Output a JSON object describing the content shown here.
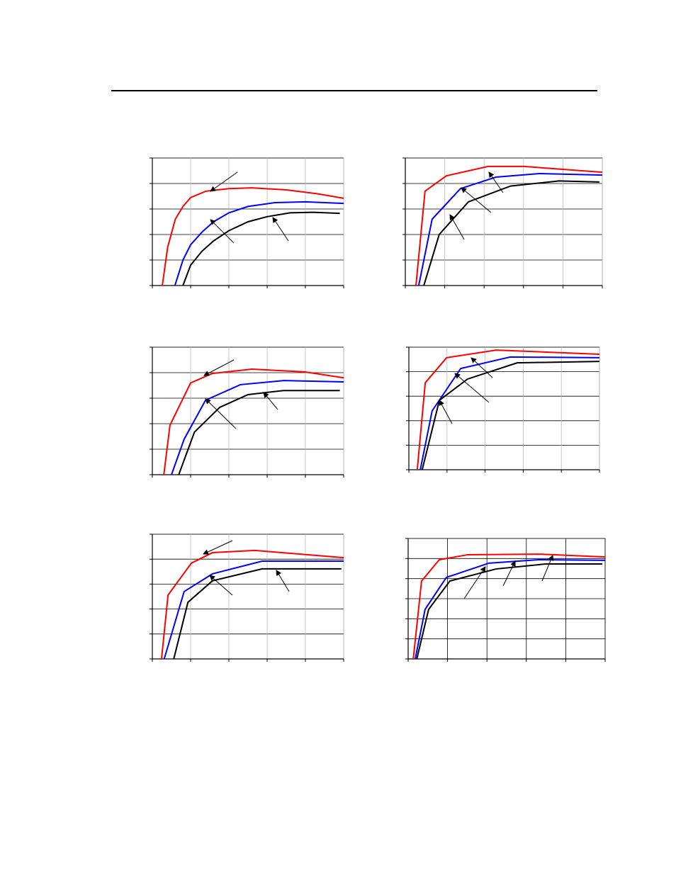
{
  "chart_data": [
    {
      "type": "line",
      "xlim": [
        0,
        5
      ],
      "ylim": [
        0,
        5
      ],
      "xticks": [
        0,
        1,
        2,
        3,
        4,
        5
      ],
      "yticks": [
        0,
        1,
        2,
        3,
        4,
        5
      ],
      "grid": true,
      "series": [
        {
          "color": "#ff0000",
          "x": [
            0.26,
            0.4,
            0.6,
            0.8,
            1.0,
            1.4,
            2.0,
            2.6,
            3.5,
            4.3,
            5
          ],
          "values": [
            0,
            1.5,
            2.6,
            3.1,
            3.45,
            3.7,
            3.8,
            3.83,
            3.75,
            3.6,
            3.42
          ]
        },
        {
          "color": "#0000ff",
          "x": [
            0.59,
            0.8,
            1.0,
            1.3,
            1.6,
            2.0,
            2.5,
            3.2,
            4.0,
            5
          ],
          "values": [
            0,
            1.0,
            1.6,
            2.1,
            2.5,
            2.85,
            3.1,
            3.25,
            3.28,
            3.22
          ]
        },
        {
          "color": "#000000",
          "x": [
            0.8,
            1.0,
            1.3,
            1.6,
            2.0,
            2.5,
            3.0,
            3.6,
            4.2,
            4.9
          ],
          "values": [
            0,
            0.8,
            1.35,
            1.75,
            2.15,
            2.5,
            2.7,
            2.85,
            2.87,
            2.83
          ]
        }
      ]
    },
    {
      "type": "line",
      "xlim": [
        0,
        5
      ],
      "ylim": [
        0,
        5
      ],
      "xticks": [
        0,
        1,
        2,
        3,
        4,
        5
      ],
      "yticks": [
        0,
        1,
        2,
        3,
        4,
        5
      ],
      "grid": true,
      "series": [
        {
          "color": "#ff0000",
          "x": [
            0.27,
            0.5,
            1.04,
            2.1,
            3.0,
            5
          ],
          "values": [
            0,
            3.7,
            4.3,
            4.67,
            4.67,
            4.44
          ]
        },
        {
          "color": "#0000ff",
          "x": [
            0.34,
            0.68,
            1.4,
            2.3,
            3.4,
            5
          ],
          "values": [
            0,
            2.6,
            3.8,
            4.25,
            4.39,
            4.33
          ]
        },
        {
          "color": "#000000",
          "x": [
            0.47,
            0.86,
            1.6,
            2.67,
            3.9,
            4.93
          ],
          "values": [
            0,
            2.0,
            3.28,
            3.9,
            4.1,
            4.06
          ]
        }
      ]
    },
    {
      "type": "line",
      "xlim": [
        0,
        5
      ],
      "ylim": [
        0,
        5
      ],
      "xticks": [
        0,
        1,
        2,
        3,
        4,
        5
      ],
      "yticks": [
        0,
        1,
        2,
        3,
        4,
        5
      ],
      "grid": true,
      "series": [
        {
          "color": "#ff0000",
          "x": [
            0.3,
            0.46,
            1.0,
            1.57,
            2.6,
            3.98,
            5
          ],
          "values": [
            0,
            1.94,
            3.6,
            3.97,
            4.14,
            4.03,
            3.8
          ]
        },
        {
          "color": "#0000ff",
          "x": [
            0.5,
            0.83,
            1.39,
            2.3,
            3.43,
            5
          ],
          "values": [
            0,
            1.39,
            2.92,
            3.53,
            3.69,
            3.64
          ]
        },
        {
          "color": "#000000",
          "x": [
            0.69,
            1.1,
            1.76,
            2.5,
            3.43,
            4.9
          ],
          "values": [
            0,
            1.67,
            2.64,
            3.14,
            3.3,
            3.3
          ]
        }
      ]
    },
    {
      "type": "line",
      "xlim": [
        0,
        5
      ],
      "ylim": [
        0,
        5
      ],
      "xticks": [
        0,
        1,
        2,
        3,
        4,
        5
      ],
      "yticks": [
        0,
        1,
        2,
        3,
        4,
        5
      ],
      "grid": true,
      "series": [
        {
          "color": "#ff0000",
          "x": [
            0.22,
            0.43,
            0.99,
            2.29,
            5
          ],
          "values": [
            0,
            3.55,
            4.57,
            4.88,
            4.71
          ]
        },
        {
          "color": "#0000ff",
          "x": [
            0.3,
            0.61,
            1.36,
            2.66,
            5
          ],
          "values": [
            0,
            2.4,
            4.13,
            4.6,
            4.57
          ]
        },
        {
          "color": "#000000",
          "x": [
            0.35,
            0.8,
            1.54,
            2.84,
            5
          ],
          "values": [
            0,
            2.83,
            3.7,
            4.36,
            4.42
          ]
        }
      ]
    },
    {
      "type": "line",
      "xlim": [
        0,
        5
      ],
      "ylim": [
        0,
        5
      ],
      "xticks": [
        0,
        1,
        2,
        3,
        4,
        5
      ],
      "yticks": [
        0,
        1,
        2,
        3,
        4,
        5
      ],
      "grid": true,
      "series": [
        {
          "color": "#ff0000",
          "x": [
            0.24,
            0.41,
            1.02,
            1.57,
            2.68,
            5
          ],
          "values": [
            0,
            2.56,
            3.84,
            4.26,
            4.35,
            4.06
          ]
        },
        {
          "color": "#0000ff",
          "x": [
            0.31,
            0.83,
            1.57,
            2.87,
            5
          ],
          "values": [
            0,
            2.7,
            3.41,
            3.92,
            3.92
          ]
        },
        {
          "color": "#000000",
          "x": [
            0.56,
            0.93,
            1.57,
            2.87,
            4.94
          ],
          "values": [
            0,
            2.27,
            3.13,
            3.61,
            3.61
          ]
        }
      ]
    },
    {
      "type": "line",
      "xlim": [
        0,
        5
      ],
      "ylim": [
        0,
        6
      ],
      "xticks": [
        0,
        1,
        2,
        3,
        4,
        5
      ],
      "yticks": [
        0,
        1,
        2,
        3,
        4,
        5,
        6
      ],
      "grid": true,
      "series": [
        {
          "color": "#ff0000",
          "x": [
            0.13,
            0.34,
            0.79,
            1.51,
            3.31,
            5
          ],
          "values": [
            0,
            3.88,
            4.94,
            5.19,
            5.22,
            5.08
          ]
        },
        {
          "color": "#0000ff",
          "x": [
            0.18,
            0.43,
            0.97,
            2.05,
            3.31,
            5
          ],
          "values": [
            0,
            2.47,
            4.06,
            4.77,
            4.94,
            4.91
          ]
        },
        {
          "color": "#000000",
          "x": [
            0.22,
            0.52,
            1.06,
            2.23,
            3.49,
            4.93
          ],
          "values": [
            0,
            2.47,
            3.88,
            4.48,
            4.73,
            4.73
          ]
        }
      ]
    }
  ]
}
